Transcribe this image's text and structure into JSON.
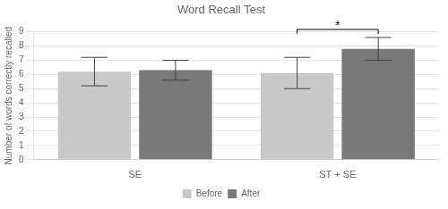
{
  "chart_data": {
    "type": "bar",
    "title": "Word Recall Test",
    "ylabel": "Number of words correctly recalled",
    "categories": [
      "SE",
      "ST + SE"
    ],
    "series": [
      {
        "name": "Before",
        "color": "#c8c8c8",
        "values": [
          6.2,
          6.1
        ],
        "errors": [
          1.0,
          1.1
        ]
      },
      {
        "name": "After",
        "color": "#787878",
        "values": [
          6.3,
          7.8
        ],
        "errors": [
          0.7,
          0.8
        ]
      }
    ],
    "ylim": [
      0,
      9
    ],
    "yticks": [
      0,
      1,
      2,
      3,
      4,
      5,
      6,
      7,
      8,
      9
    ],
    "grid": true,
    "legend": "bottom",
    "annotations": [
      {
        "text": "*",
        "category": "ST + SE",
        "between": [
          "Before",
          "After"
        ]
      }
    ]
  }
}
